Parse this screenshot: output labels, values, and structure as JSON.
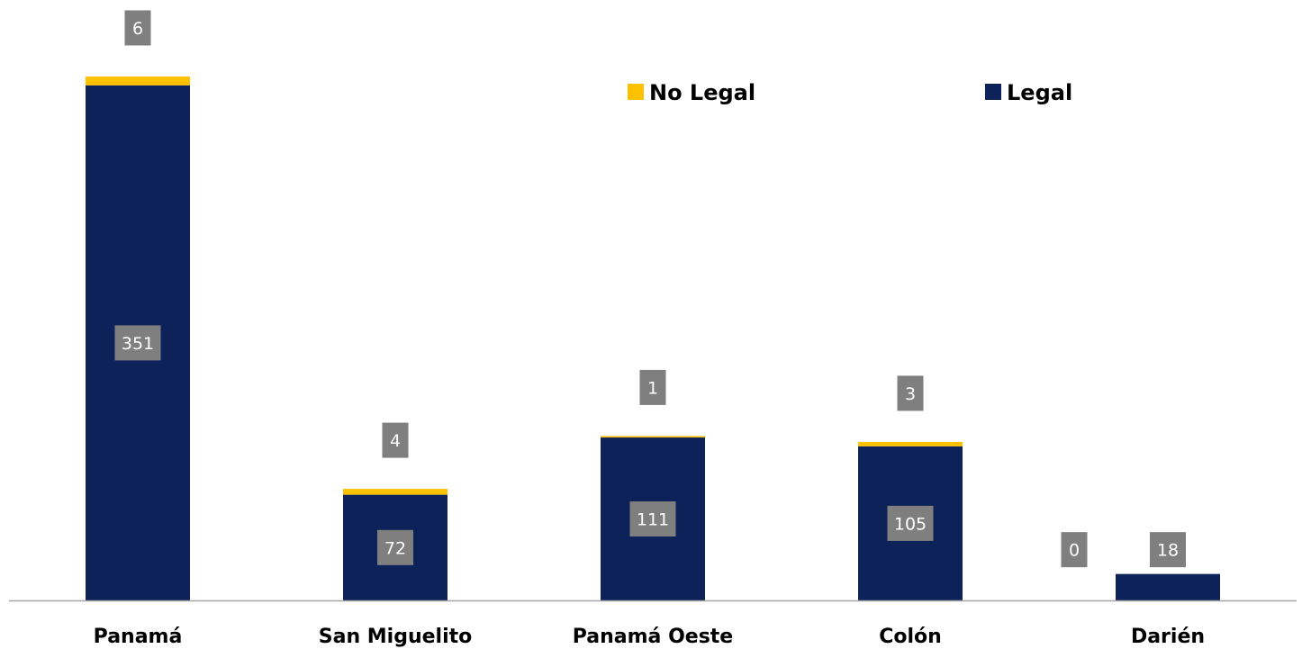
{
  "chart_data": {
    "type": "bar",
    "stacked": true,
    "categories": [
      "Panamá",
      "San Miguelito",
      "Panamá Oeste",
      "Colón",
      "Darién"
    ],
    "series": [
      {
        "name": "Legal",
        "values": [
          351,
          72,
          111,
          105,
          18
        ],
        "color": "#0c2259"
      },
      {
        "name": "No Legal",
        "values": [
          6,
          4,
          1,
          3,
          0
        ],
        "color": "#ffc000"
      }
    ],
    "title": "",
    "xlabel": "",
    "ylabel": "",
    "ylim": [
      0,
      357
    ],
    "grid": false,
    "legend": {
      "placement": "top-center",
      "order": [
        "No Legal",
        "Legal"
      ]
    },
    "label_box_color": "#7f7f7f",
    "axis_color": "#a6a6a6"
  }
}
